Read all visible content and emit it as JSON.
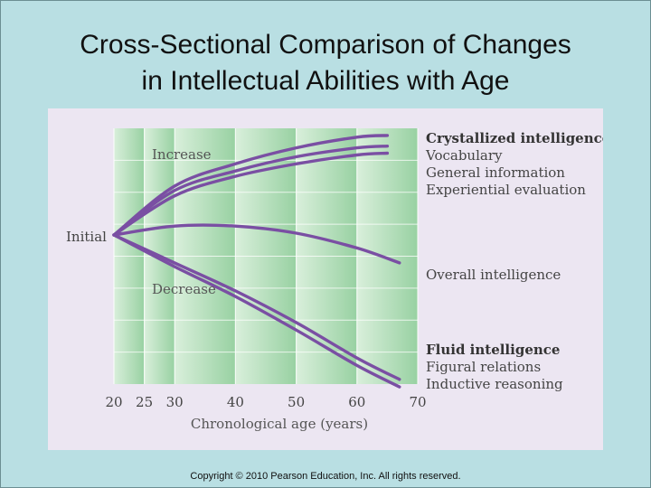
{
  "slide": {
    "title_line1": "Cross-Sectional Comparison of Changes",
    "title_line2": "in Intellectual Abilities with Age",
    "copyright": "Copyright © 2010 Pearson Education, Inc. All rights reserved."
  },
  "chart_data": {
    "type": "line",
    "title": "",
    "xlabel": "Chronological age (years)",
    "ylabel": "",
    "x_ticks": [
      20,
      25,
      30,
      40,
      50,
      60,
      70
    ],
    "xlim": [
      20,
      70
    ],
    "ylim": [
      -1.6,
      1.2
    ],
    "initial_label": "Initial",
    "region_labels": {
      "increase": "Increase",
      "decrease": "Decrease"
    },
    "groups": {
      "crystallized": {
        "title": "Crystallized intelligence",
        "items": [
          "Vocabulary",
          "General information",
          "Experiential evaluation"
        ]
      },
      "overall": {
        "title": "Overall intelligence"
      },
      "fluid": {
        "title": "Fluid intelligence",
        "items": [
          "Figural relations",
          "Inductive reasoning"
        ]
      }
    },
    "series": [
      {
        "name": "Vocabulary",
        "x": [
          20,
          30,
          40,
          50,
          60,
          65
        ],
        "y": [
          0,
          0.55,
          0.8,
          0.98,
          1.1,
          1.12
        ]
      },
      {
        "name": "General information",
        "x": [
          20,
          30,
          40,
          50,
          60,
          65
        ],
        "y": [
          0,
          0.5,
          0.72,
          0.88,
          0.98,
          1.0
        ]
      },
      {
        "name": "Experiential evaluation",
        "x": [
          20,
          30,
          40,
          50,
          60,
          65
        ],
        "y": [
          0,
          0.44,
          0.66,
          0.8,
          0.9,
          0.92
        ]
      },
      {
        "name": "Overall intelligence",
        "x": [
          20,
          30,
          40,
          50,
          60,
          67
        ],
        "y": [
          0,
          0.1,
          0.1,
          0.02,
          -0.14,
          -0.3
        ]
      },
      {
        "name": "Figural relations",
        "x": [
          20,
          30,
          40,
          50,
          60,
          67
        ],
        "y": [
          0,
          -0.3,
          -0.6,
          -0.94,
          -1.32,
          -1.55
        ]
      },
      {
        "name": "Inductive reasoning",
        "x": [
          20,
          30,
          40,
          50,
          60,
          67
        ],
        "y": [
          0,
          -0.34,
          -0.66,
          -1.02,
          -1.4,
          -1.63
        ]
      }
    ],
    "colors": {
      "line": "#7a4fa3",
      "band_light": "#d7eed9",
      "band_dark": "#9fd4a8",
      "panel": "#ece6f2"
    }
  }
}
